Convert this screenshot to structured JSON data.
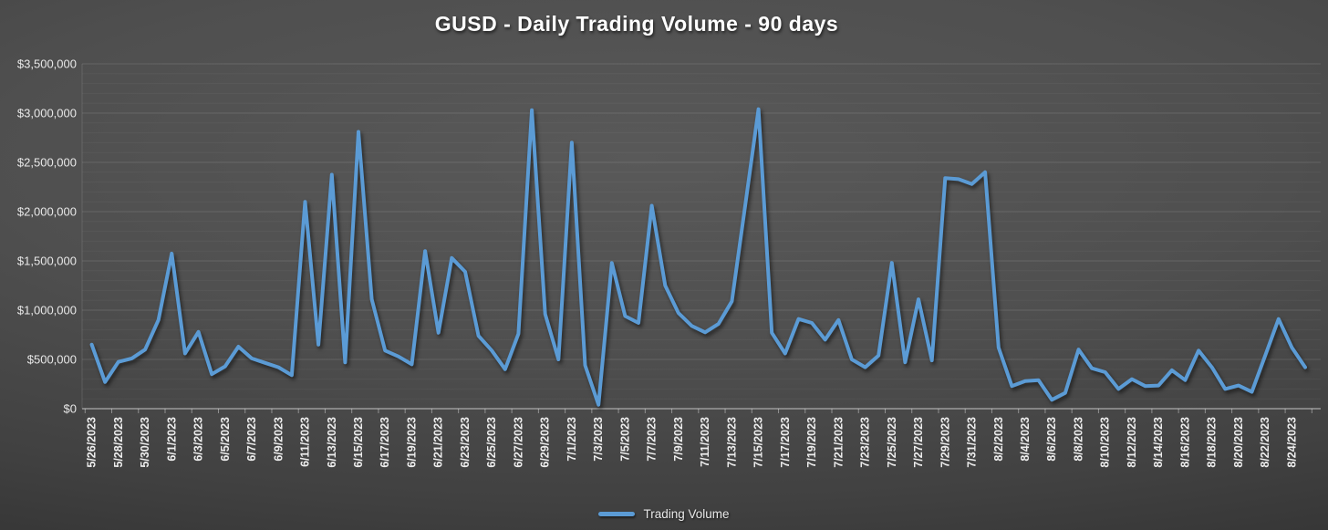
{
  "title": "GUSD - Daily Trading Volume - 90 days",
  "legend": {
    "label": "Trading Volume"
  },
  "colors": {
    "line": "#5B9BD5",
    "background_center": "#565656",
    "background_edge": "#2c2c2c",
    "text": "#ececec",
    "axis": "#9a9a9a"
  },
  "chart_data": {
    "type": "line",
    "title": "GUSD - Daily Trading Volume - 90 days",
    "xlabel": "",
    "ylabel": "",
    "ylim": [
      0,
      3500000
    ],
    "y_major_step": 500000,
    "y_minor_step": 100000,
    "grid": "horizontal major and minor gridlines",
    "legend_position": "bottom-center",
    "y_tick_labels": [
      "$0",
      "$500,000",
      "$1,000,000",
      "$1,500,000",
      "$2,000,000",
      "$2,500,000",
      "$3,000,000",
      "$3,500,000"
    ],
    "x_tick_labels": [
      "5/26/2023",
      "5/28/2023",
      "5/30/2023",
      "6/1/2023",
      "6/3/2023",
      "6/5/2023",
      "6/7/2023",
      "6/9/2023",
      "6/11/2023",
      "6/13/2023",
      "6/15/2023",
      "6/17/2023",
      "6/19/2023",
      "6/21/2023",
      "6/23/2023",
      "6/25/2023",
      "6/27/2023",
      "6/29/2023",
      "7/1/2023",
      "7/3/2023",
      "7/5/2023",
      "7/7/2023",
      "7/9/2023",
      "7/11/2023",
      "7/13/2023",
      "7/15/2023",
      "7/17/2023",
      "7/19/2023",
      "7/21/2023",
      "7/23/2023",
      "7/25/2023",
      "7/27/2023",
      "7/29/2023",
      "7/31/2023",
      "8/2/2023",
      "8/4/2023",
      "8/6/2023",
      "8/8/2023",
      "8/10/2023",
      "8/12/2023",
      "8/14/2023",
      "8/16/2023",
      "8/18/2023",
      "8/20/2023",
      "8/22/2023",
      "8/24/2023"
    ],
    "x": [
      "5/26/2023",
      "5/27/2023",
      "5/28/2023",
      "5/29/2023",
      "5/30/2023",
      "5/31/2023",
      "6/1/2023",
      "6/2/2023",
      "6/3/2023",
      "6/4/2023",
      "6/5/2023",
      "6/6/2023",
      "6/7/2023",
      "6/8/2023",
      "6/9/2023",
      "6/10/2023",
      "6/11/2023",
      "6/12/2023",
      "6/13/2023",
      "6/14/2023",
      "6/15/2023",
      "6/16/2023",
      "6/17/2023",
      "6/18/2023",
      "6/19/2023",
      "6/20/2023",
      "6/21/2023",
      "6/22/2023",
      "6/23/2023",
      "6/24/2023",
      "6/25/2023",
      "6/26/2023",
      "6/27/2023",
      "6/28/2023",
      "6/29/2023",
      "6/30/2023",
      "7/1/2023",
      "7/2/2023",
      "7/3/2023",
      "7/4/2023",
      "7/5/2023",
      "7/6/2023",
      "7/7/2023",
      "7/8/2023",
      "7/9/2023",
      "7/10/2023",
      "7/11/2023",
      "7/12/2023",
      "7/13/2023",
      "7/14/2023",
      "7/15/2023",
      "7/16/2023",
      "7/17/2023",
      "7/18/2023",
      "7/19/2023",
      "7/20/2023",
      "7/21/2023",
      "7/22/2023",
      "7/23/2023",
      "7/24/2023",
      "7/25/2023",
      "7/26/2023",
      "7/27/2023",
      "7/28/2023",
      "7/29/2023",
      "7/30/2023",
      "7/31/2023",
      "8/1/2023",
      "8/2/2023",
      "8/3/2023",
      "8/4/2023",
      "8/5/2023",
      "8/6/2023",
      "8/7/2023",
      "8/8/2023",
      "8/9/2023",
      "8/10/2023",
      "8/11/2023",
      "8/12/2023",
      "8/13/2023",
      "8/14/2023",
      "8/15/2023",
      "8/16/2023",
      "8/17/2023",
      "8/18/2023",
      "8/19/2023",
      "8/20/2023",
      "8/21/2023",
      "8/22/2023",
      "8/23/2023",
      "8/24/2023",
      "8/25/2023"
    ],
    "series": [
      {
        "name": "Trading Volume",
        "values": [
          650000,
          270000,
          475000,
          510000,
          600000,
          900000,
          1575000,
          560000,
          780000,
          350000,
          430000,
          630000,
          510000,
          465000,
          420000,
          340000,
          2100000,
          650000,
          2375000,
          470000,
          2810000,
          1110000,
          590000,
          530000,
          450000,
          1600000,
          770000,
          1530000,
          1390000,
          740000,
          590000,
          400000,
          760000,
          3030000,
          960000,
          500000,
          2700000,
          440000,
          40000,
          1480000,
          940000,
          870000,
          2060000,
          1250000,
          970000,
          840000,
          775000,
          860000,
          1090000,
          2060000,
          3040000,
          770000,
          560000,
          910000,
          870000,
          700000,
          900000,
          500000,
          420000,
          540000,
          1480000,
          470000,
          1110000,
          490000,
          2340000,
          2330000,
          2280000,
          2400000,
          620000,
          230000,
          280000,
          290000,
          90000,
          160000,
          600000,
          410000,
          370000,
          200000,
          300000,
          230000,
          235000,
          390000,
          290000,
          590000,
          420000,
          200000,
          235000,
          170000,
          540000,
          910000,
          620000,
          420000
        ]
      }
    ]
  }
}
